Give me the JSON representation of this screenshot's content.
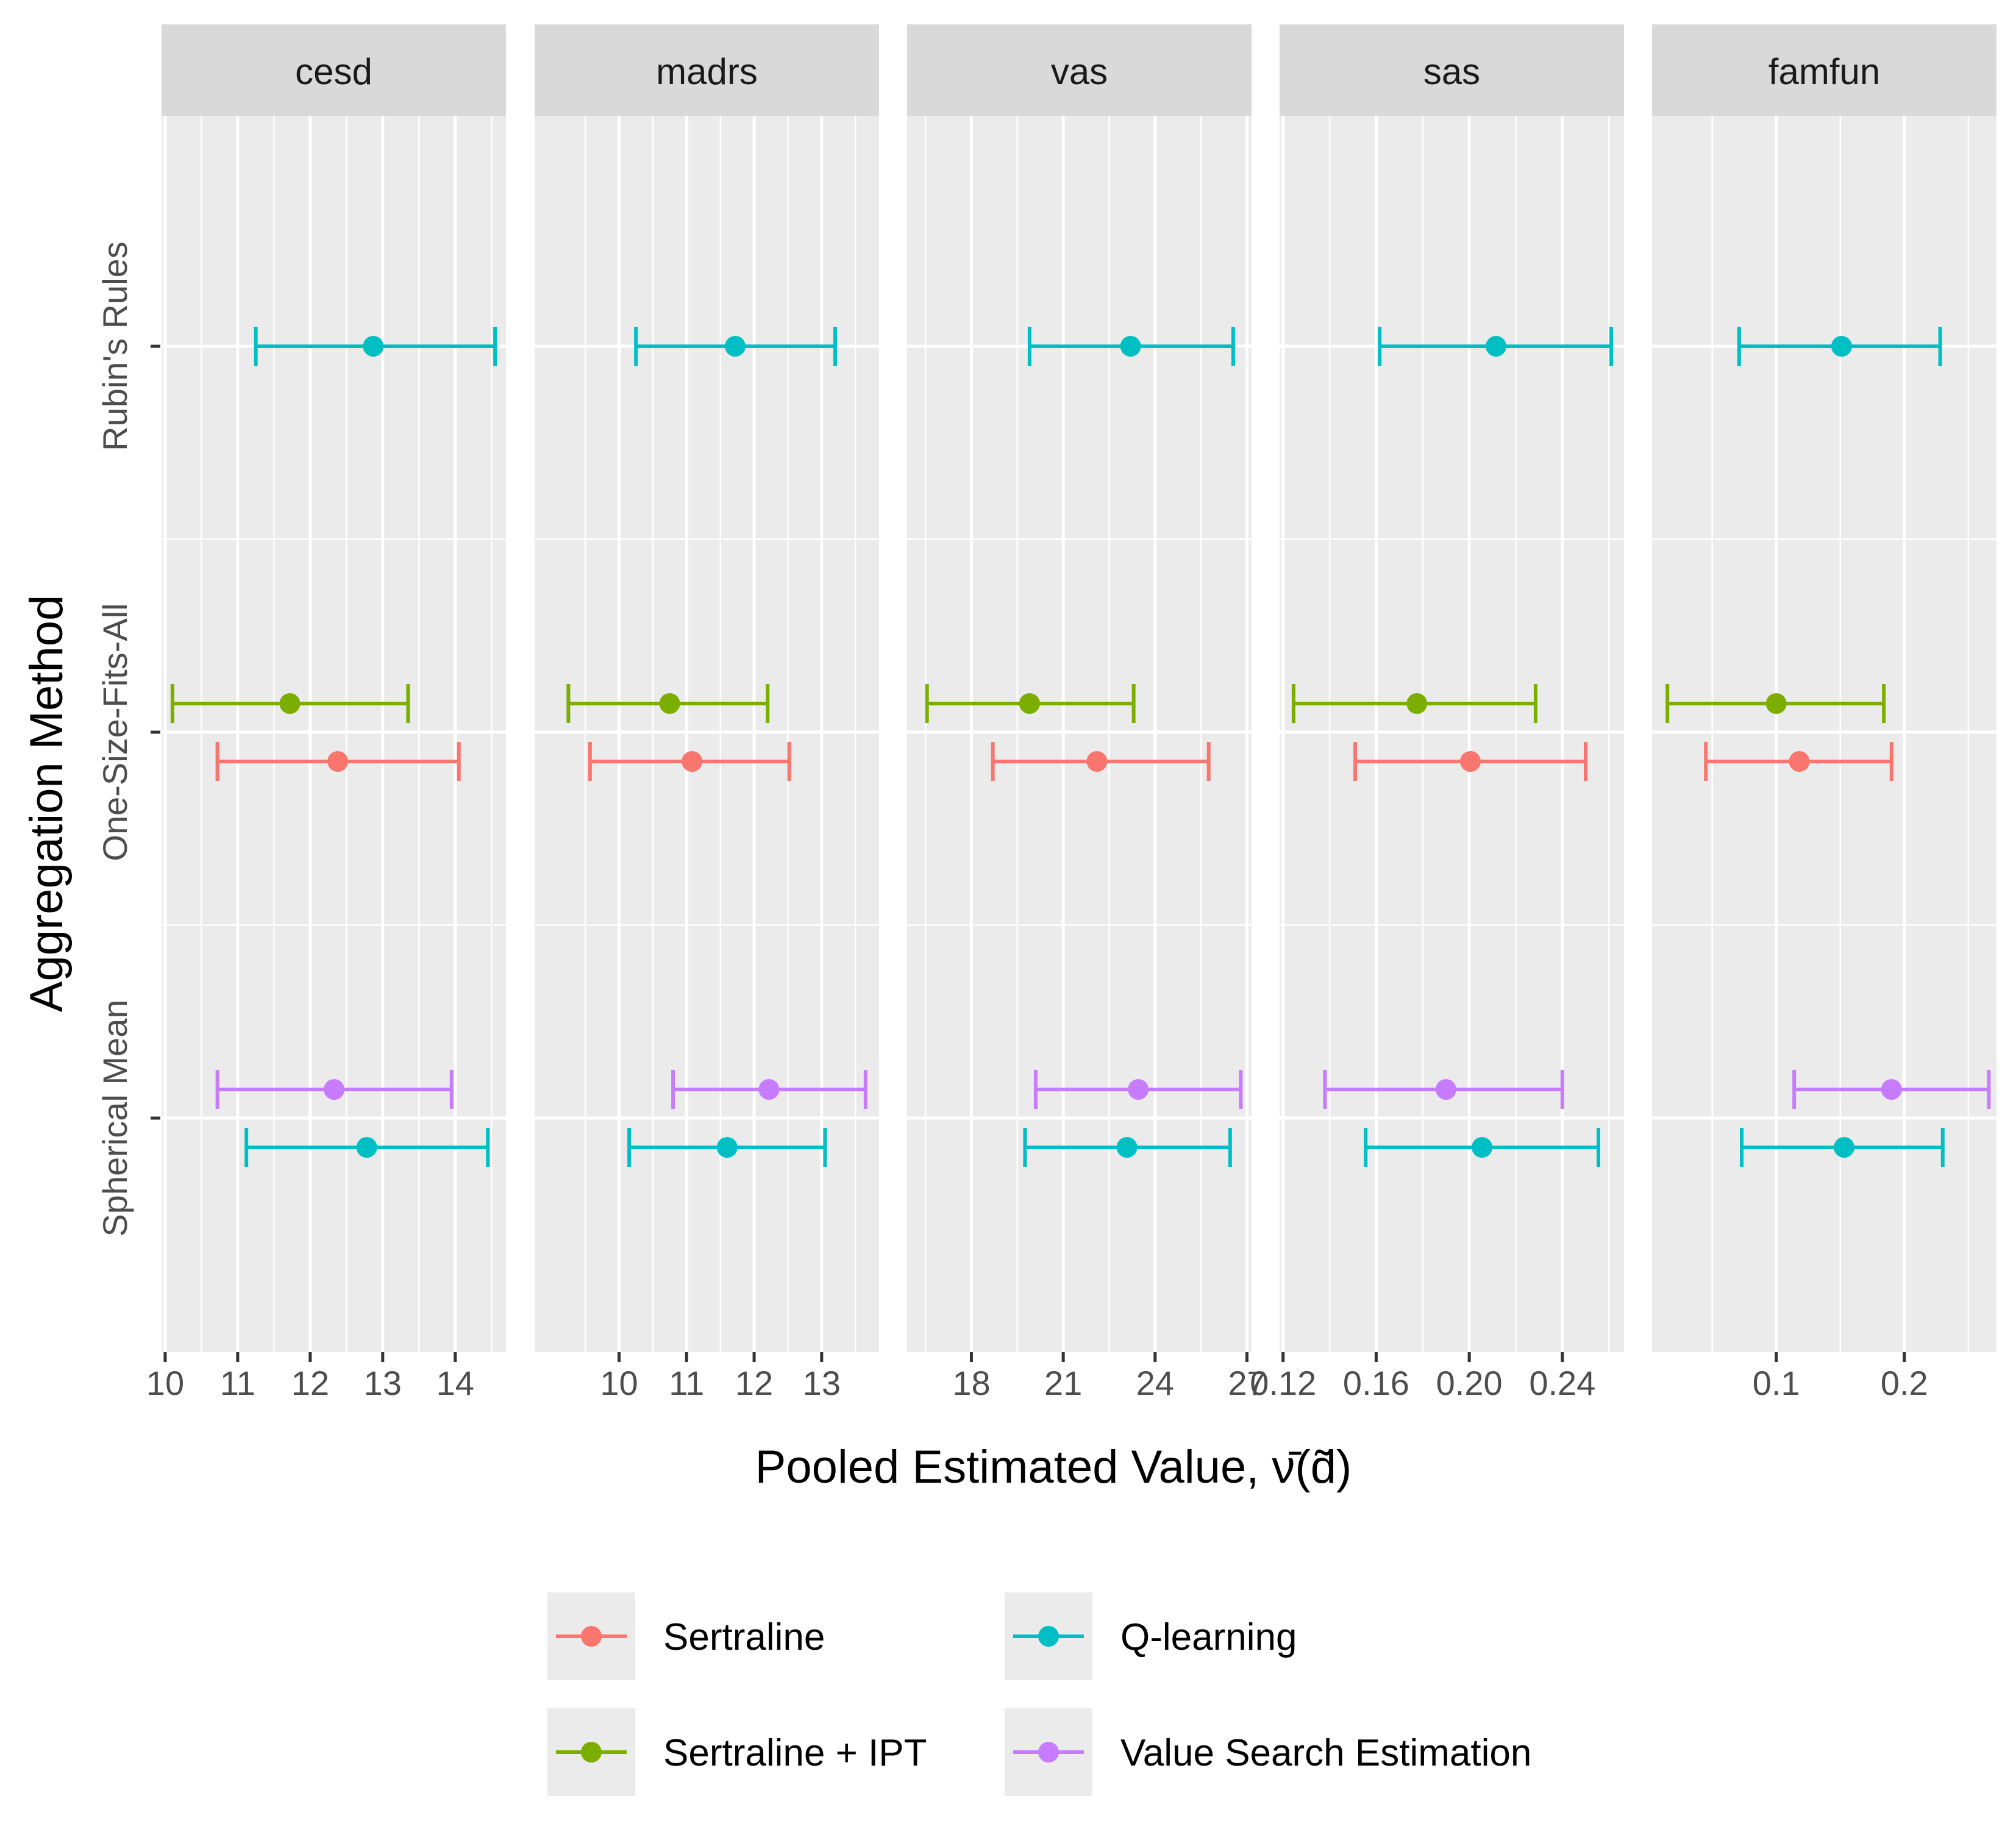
{
  "chart_data": {
    "type": "errorbar",
    "xlabel": "Pooled Estimated Value, ν̄(d̃)",
    "ylabel": "Aggregation Method",
    "y_categories": [
      "Rubin's Rules",
      "One-Size-Fits-All",
      "Spherical Mean"
    ],
    "facets": [
      {
        "name": "cesd",
        "xlim": [
          9.95,
          14.7
        ],
        "xticks": [
          10,
          11,
          12,
          13,
          14
        ],
        "xtick_labels": [
          "10",
          "11",
          "12",
          "13",
          "14"
        ],
        "points": [
          {
            "method": "Rubin's Rules",
            "treatment": "Q-learning",
            "estimate": 12.87,
            "lower": 11.25,
            "upper": 14.55
          },
          {
            "method": "One-Size-Fits-All",
            "treatment": "Sertraline + IPT",
            "estimate": 11.72,
            "lower": 10.1,
            "upper": 13.35
          },
          {
            "method": "One-Size-Fits-All",
            "treatment": "Sertraline",
            "estimate": 12.38,
            "lower": 10.72,
            "upper": 14.05
          },
          {
            "method": "Spherical Mean",
            "treatment": "Value Search Estimation",
            "estimate": 12.33,
            "lower": 10.72,
            "upper": 13.95
          },
          {
            "method": "Spherical Mean",
            "treatment": "Q-learning",
            "estimate": 12.78,
            "lower": 11.12,
            "upper": 14.45
          }
        ]
      },
      {
        "name": "madrs",
        "xlim": [
          8.75,
          13.85
        ],
        "xticks": [
          10,
          11,
          12,
          13
        ],
        "xtick_labels": [
          "10",
          "11",
          "12",
          "13"
        ],
        "points": [
          {
            "method": "Rubin's Rules",
            "treatment": "Q-learning",
            "estimate": 11.72,
            "lower": 10.25,
            "upper": 13.2
          },
          {
            "method": "One-Size-Fits-All",
            "treatment": "Sertraline + IPT",
            "estimate": 10.75,
            "lower": 9.25,
            "upper": 12.2
          },
          {
            "method": "One-Size-Fits-All",
            "treatment": "Sertraline",
            "estimate": 11.08,
            "lower": 9.57,
            "upper": 12.52
          },
          {
            "method": "Spherical Mean",
            "treatment": "Value Search Estimation",
            "estimate": 12.22,
            "lower": 10.8,
            "upper": 13.65
          },
          {
            "method": "Spherical Mean",
            "treatment": "Q-learning",
            "estimate": 11.6,
            "lower": 10.15,
            "upper": 13.05
          }
        ]
      },
      {
        "name": "vas",
        "xlim": [
          15.9,
          27.15
        ],
        "xticks": [
          18,
          21,
          24,
          27
        ],
        "xtick_labels": [
          "18",
          "21",
          "24",
          "27"
        ],
        "points": [
          {
            "method": "Rubin's Rules",
            "treatment": "Q-learning",
            "estimate": 23.2,
            "lower": 19.9,
            "upper": 26.55
          },
          {
            "method": "One-Size-Fits-All",
            "treatment": "Sertraline + IPT",
            "estimate": 19.9,
            "lower": 16.55,
            "upper": 23.3
          },
          {
            "method": "One-Size-Fits-All",
            "treatment": "Sertraline",
            "estimate": 22.1,
            "lower": 18.7,
            "upper": 25.75
          },
          {
            "method": "Spherical Mean",
            "treatment": "Value Search Estimation",
            "estimate": 23.45,
            "lower": 20.1,
            "upper": 26.8
          },
          {
            "method": "Spherical Mean",
            "treatment": "Q-learning",
            "estimate": 23.08,
            "lower": 19.75,
            "upper": 26.45
          }
        ]
      },
      {
        "name": "sas",
        "xlim": [
          0.1185,
          0.2665
        ],
        "xticks": [
          0.12,
          0.16,
          0.2,
          0.24
        ],
        "xtick_labels": [
          "0.12",
          "0.16",
          "0.20",
          "0.24"
        ],
        "points": [
          {
            "method": "Rubin's Rules",
            "treatment": "Q-learning",
            "estimate": 0.2115,
            "lower": 0.1615,
            "upper": 0.261
          },
          {
            "method": "One-Size-Fits-All",
            "treatment": "Sertraline + IPT",
            "estimate": 0.1775,
            "lower": 0.1245,
            "upper": 0.2285
          },
          {
            "method": "One-Size-Fits-All",
            "treatment": "Sertraline",
            "estimate": 0.2005,
            "lower": 0.151,
            "upper": 0.25
          },
          {
            "method": "Spherical Mean",
            "treatment": "Value Search Estimation",
            "estimate": 0.19,
            "lower": 0.138,
            "upper": 0.24
          },
          {
            "method": "Spherical Mean",
            "treatment": "Q-learning",
            "estimate": 0.2055,
            "lower": 0.1555,
            "upper": 0.2555
          }
        ]
      },
      {
        "name": "famfun",
        "xlim": [
          0.003,
          0.272
        ],
        "xticks": [
          0.1,
          0.2
        ],
        "xtick_labels": [
          "0.1",
          "0.2"
        ],
        "points": [
          {
            "method": "Rubin's Rules",
            "treatment": "Q-learning",
            "estimate": 0.151,
            "lower": 0.071,
            "upper": 0.228
          },
          {
            "method": "One-Size-Fits-All",
            "treatment": "Sertraline + IPT",
            "estimate": 0.1,
            "lower": 0.015,
            "upper": 0.184
          },
          {
            "method": "One-Size-Fits-All",
            "treatment": "Sertraline",
            "estimate": 0.118,
            "lower": 0.045,
            "upper": 0.19
          },
          {
            "method": "Spherical Mean",
            "treatment": "Value Search Estimation",
            "estimate": 0.19,
            "lower": 0.114,
            "upper": 0.266
          },
          {
            "method": "Spherical Mean",
            "treatment": "Q-learning",
            "estimate": 0.153,
            "lower": 0.073,
            "upper": 0.23
          }
        ]
      }
    ],
    "legend": {
      "position": "bottom",
      "entries": [
        {
          "label": "Sertraline",
          "color": "#F8766D"
        },
        {
          "label": "Q-learning",
          "color": "#00BFC4"
        },
        {
          "label": "Sertraline + IPT",
          "color": "#7CAE00"
        },
        {
          "label": "Value Search Estimation",
          "color": "#C77CFF"
        }
      ]
    },
    "colors": {
      "Sertraline": "#F8766D",
      "Sertraline + IPT": "#7CAE00",
      "Q-learning": "#00BFC4",
      "Value Search Estimation": "#C77CFF"
    },
    "grid": true
  }
}
